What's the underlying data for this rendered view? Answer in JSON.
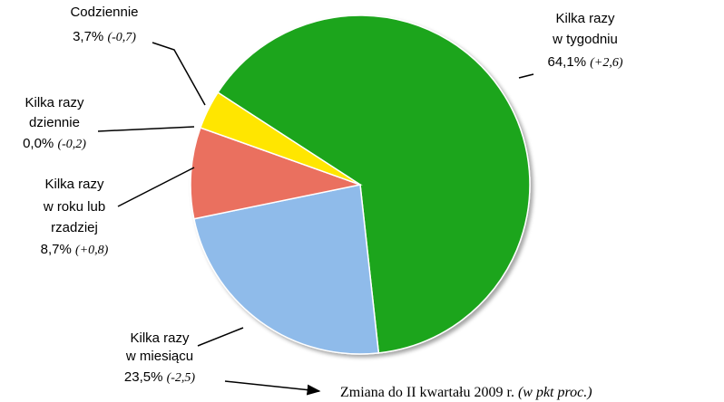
{
  "chart_data": {
    "type": "pie",
    "categories": [
      [
        "Kilka razy",
        "w tygodniu"
      ],
      [
        "Kilka razy",
        "w miesiącu"
      ],
      [
        "Kilka razy",
        "w roku lub",
        "rzadziej"
      ],
      [
        "Kilka razy",
        "dziennie"
      ],
      [
        "Codziennie"
      ]
    ],
    "values": [
      64.1,
      23.5,
      8.7,
      0.0,
      3.7
    ],
    "value_labels": [
      "64,1%",
      "23,5%",
      "8,7%",
      "0,0%",
      "3,7%"
    ],
    "change_labels": [
      "(+2,6)",
      "(-2,5)",
      "(+0,8)",
      "(-0,2)",
      "(-0,7)"
    ],
    "colors": [
      "#1ea51e",
      "#8fbbea",
      "#ea6f5f",
      "#b06fd0",
      "#ffe600"
    ],
    "note": "Zmiana do II kwartału 2009 r.",
    "note_unit": "(w pkt proc.)"
  }
}
